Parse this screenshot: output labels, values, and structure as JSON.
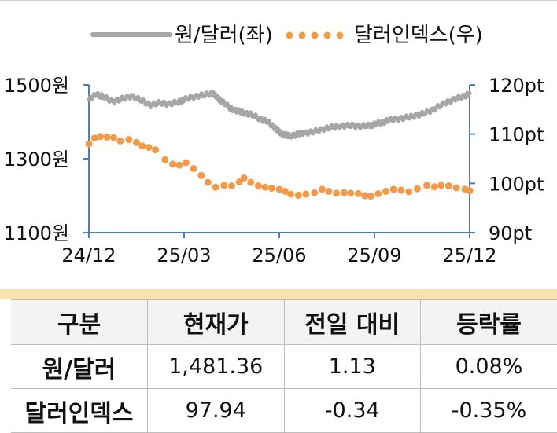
{
  "chart_data": {
    "type": "line",
    "x_ticks": [
      "24/12",
      "25/03",
      "25/06",
      "25/09",
      "25/12"
    ],
    "legend": {
      "placement": "top"
    },
    "y_left": {
      "ticks": [
        "1100원",
        "1300원",
        "1500원"
      ],
      "range": [
        1100,
        1500
      ]
    },
    "y_right": {
      "ticks": [
        "90pt",
        "100pt",
        "110pt",
        "120pt"
      ],
      "range": [
        90,
        120
      ]
    },
    "series": [
      {
        "name": "원/달러(좌)",
        "axis": "left",
        "color": "#a6a6a6",
        "style": "solid",
        "points": [
          [
            0.0,
            1460
          ],
          [
            0.08,
            1475
          ],
          [
            0.15,
            1468
          ],
          [
            0.25,
            1455
          ],
          [
            0.35,
            1462
          ],
          [
            0.45,
            1470
          ],
          [
            0.55,
            1458
          ],
          [
            0.65,
            1445
          ],
          [
            0.75,
            1452
          ],
          [
            0.85,
            1448
          ],
          [
            0.95,
            1455
          ],
          [
            1.0,
            1460
          ],
          [
            1.1,
            1468
          ],
          [
            1.2,
            1472
          ],
          [
            1.3,
            1478
          ],
          [
            1.35,
            1465
          ],
          [
            1.4,
            1455
          ],
          [
            1.48,
            1438
          ],
          [
            1.55,
            1430
          ],
          [
            1.62,
            1425
          ],
          [
            1.7,
            1420
          ],
          [
            1.8,
            1408
          ],
          [
            1.88,
            1400
          ],
          [
            1.95,
            1385
          ],
          [
            2.0,
            1372
          ],
          [
            2.05,
            1365
          ],
          [
            2.1,
            1362
          ],
          [
            2.18,
            1365
          ],
          [
            2.25,
            1370
          ],
          [
            2.35,
            1372
          ],
          [
            2.45,
            1380
          ],
          [
            2.55,
            1385
          ],
          [
            2.65,
            1388
          ],
          [
            2.75,
            1390
          ],
          [
            2.85,
            1388
          ],
          [
            2.95,
            1390
          ],
          [
            3.0,
            1393
          ],
          [
            3.08,
            1398
          ],
          [
            3.15,
            1405
          ],
          [
            3.25,
            1408
          ],
          [
            3.35,
            1412
          ],
          [
            3.45,
            1418
          ],
          [
            3.55,
            1425
          ],
          [
            3.65,
            1438
          ],
          [
            3.75,
            1452
          ],
          [
            3.85,
            1462
          ],
          [
            3.95,
            1470
          ],
          [
            4.0,
            1478
          ]
        ]
      },
      {
        "name": "달러인덱스(우)",
        "axis": "right",
        "color": "#f39a4a",
        "style": "dotted",
        "points": [
          [
            0.0,
            108.0
          ],
          [
            0.06,
            109.2
          ],
          [
            0.12,
            109.5
          ],
          [
            0.19,
            109.4
          ],
          [
            0.26,
            109.3
          ],
          [
            0.33,
            108.6
          ],
          [
            0.42,
            108.9
          ],
          [
            0.5,
            108.3
          ],
          [
            0.56,
            107.6
          ],
          [
            0.63,
            107.3
          ],
          [
            0.7,
            106.8
          ],
          [
            0.8,
            104.8
          ],
          [
            0.88,
            103.9
          ],
          [
            0.95,
            103.7
          ],
          [
            1.02,
            104.2
          ],
          [
            1.1,
            103.0
          ],
          [
            1.18,
            101.6
          ],
          [
            1.25,
            100.2
          ],
          [
            1.33,
            99.2
          ],
          [
            1.42,
            99.6
          ],
          [
            1.5,
            99.5
          ],
          [
            1.58,
            100.3
          ],
          [
            1.63,
            101.1
          ],
          [
            1.7,
            100.2
          ],
          [
            1.78,
            99.5
          ],
          [
            1.85,
            99.2
          ],
          [
            1.92,
            99.0
          ],
          [
            2.0,
            98.8
          ],
          [
            2.06,
            98.4
          ],
          [
            2.12,
            97.8
          ],
          [
            2.2,
            97.6
          ],
          [
            2.28,
            97.8
          ],
          [
            2.37,
            98.1
          ],
          [
            2.45,
            98.8
          ],
          [
            2.52,
            98.4
          ],
          [
            2.6,
            98.0
          ],
          [
            2.68,
            98.1
          ],
          [
            2.75,
            98.0
          ],
          [
            2.83,
            97.9
          ],
          [
            2.9,
            97.5
          ],
          [
            2.96,
            97.4
          ],
          [
            3.04,
            97.9
          ],
          [
            3.12,
            98.4
          ],
          [
            3.2,
            98.8
          ],
          [
            3.28,
            98.6
          ],
          [
            3.36,
            98.3
          ],
          [
            3.45,
            98.9
          ],
          [
            3.55,
            99.6
          ],
          [
            3.63,
            99.3
          ],
          [
            3.7,
            99.6
          ],
          [
            3.78,
            99.5
          ],
          [
            3.86,
            99.1
          ],
          [
            3.95,
            98.8
          ],
          [
            4.0,
            98.5
          ]
        ]
      }
    ]
  },
  "table": {
    "headers": [
      "구분",
      "현재가",
      "전일 대비",
      "등락률"
    ],
    "rows": [
      [
        "원/달러",
        "1,481.36",
        "1.13",
        "0.08%"
      ],
      [
        "달러인덱스",
        "97.94",
        "-0.34",
        "-0.35%"
      ]
    ]
  }
}
